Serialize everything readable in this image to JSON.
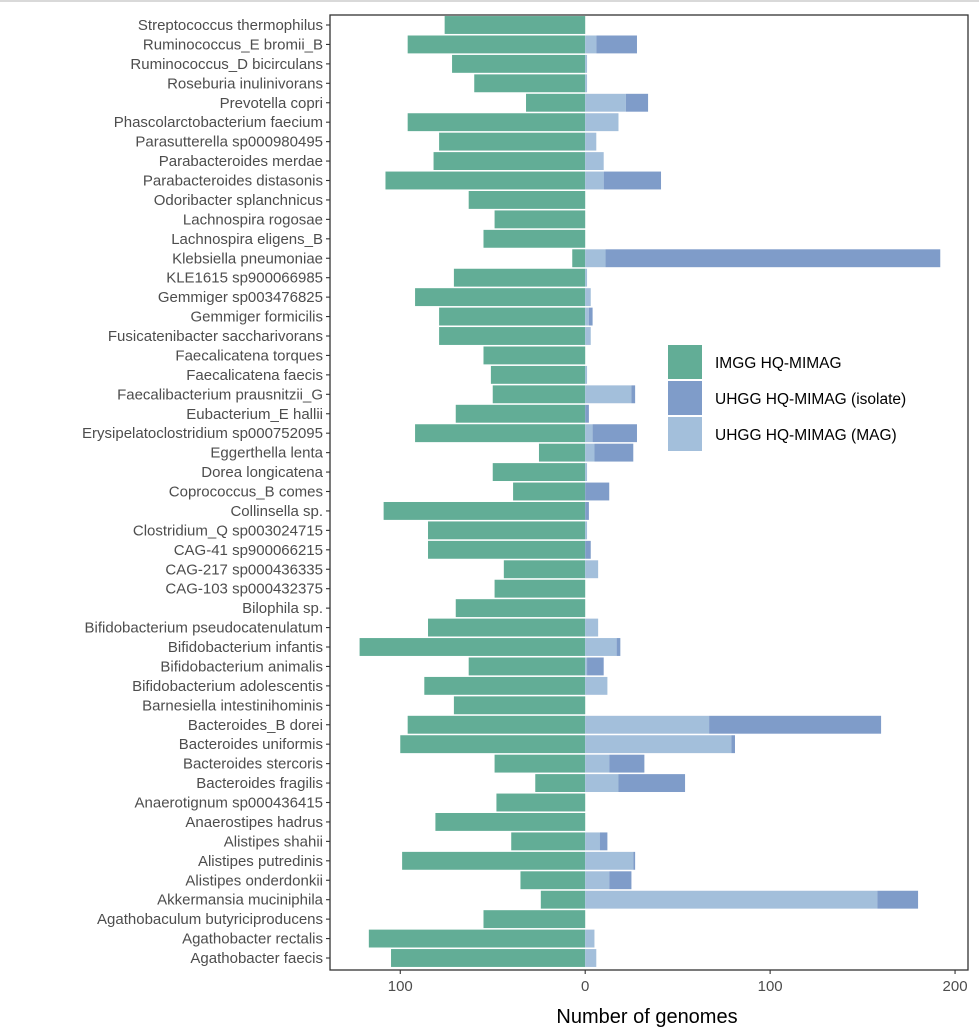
{
  "chart_data": {
    "type": "bar",
    "orientation": "horizontal",
    "stacked": true,
    "title": "",
    "xlabel": "Number of genomes",
    "ylabel": "",
    "xlim": [
      -138,
      207
    ],
    "x_ticks": [
      -100,
      0,
      100,
      200
    ],
    "x_tick_labels": [
      "100",
      "0",
      "100",
      "200"
    ],
    "grid": false,
    "legend_position": "right-center",
    "note": "IMGG counts are drawn to the left of zero; UHGG MAG and isolate counts are stacked to the right",
    "series": [
      {
        "name": "IMGG HQ-MIMAG",
        "color": "#62ad96",
        "direction": "left"
      },
      {
        "name": "UHGG HQ-MIMAG (isolate)",
        "color": "#7f9cc9",
        "direction": "right"
      },
      {
        "name": "UHGG HQ-MIMAG (MAG)",
        "color": "#a3bfdb",
        "direction": "right"
      }
    ],
    "categories": [
      "Streptococcus thermophilus",
      "Ruminococcus_E bromii_B",
      "Ruminococcus_D bicirculans",
      "Roseburia inulinivorans",
      "Prevotella copri",
      "Phascolarctobacterium faecium",
      "Parasutterella sp000980495",
      "Parabacteroides merdae",
      "Parabacteroides distasonis",
      "Odoribacter splanchnicus",
      "Lachnospira rogosae",
      "Lachnospira eligens_B",
      "Klebsiella pneumoniae",
      "KLE1615 sp900066985",
      "Gemmiger sp003476825",
      "Gemmiger formicilis",
      "Fusicatenibacter saccharivorans",
      "Faecalicatena torques",
      "Faecalicatena faecis",
      "Faecalibacterium prausnitzii_G",
      "Eubacterium_E hallii",
      "Erysipelatoclostridium sp000752095",
      "Eggerthella lenta",
      "Dorea longicatena",
      "Coprococcus_B comes",
      "Collinsella sp.",
      "Clostridium_Q sp003024715",
      "CAG-41 sp900066215",
      "CAG-217 sp000436335",
      "CAG-103 sp000432375",
      "Bilophila sp.",
      "Bifidobacterium pseudocatenulatum",
      "Bifidobacterium infantis",
      "Bifidobacterium animalis",
      "Bifidobacterium adolescentis",
      "Barnesiella intestinihominis",
      "Bacteroides_B dorei",
      "Bacteroides uniformis",
      "Bacteroides stercoris",
      "Bacteroides fragilis",
      "Anaerotignum sp000436415",
      "Anaerostipes hadrus",
      "Alistipes shahii",
      "Alistipes putredinis",
      "Alistipes onderdonkii",
      "Akkermansia muciniphila",
      "Agathobaculum butyriciproducens",
      "Agathobacter rectalis",
      "Agathobacter faecis"
    ],
    "imgg": [
      76,
      96,
      72,
      60,
      32,
      96,
      79,
      82,
      108,
      63,
      49,
      55,
      7,
      71,
      92,
      79,
      79,
      55,
      51,
      50,
      70,
      92,
      25,
      50,
      39,
      109,
      85,
      85,
      44,
      49,
      70,
      85,
      122,
      63,
      87,
      71,
      96,
      100,
      49,
      27,
      48,
      81,
      40,
      99,
      35,
      24,
      55,
      117,
      105
    ],
    "uhgg_mag": [
      0,
      6,
      1,
      1,
      22,
      18,
      6,
      10,
      10,
      0,
      0,
      0,
      11,
      1,
      3,
      2,
      3,
      0,
      1,
      25,
      0,
      4,
      5,
      1,
      0,
      0,
      1,
      0,
      7,
      0,
      0,
      7,
      17,
      1,
      12,
      0,
      67,
      79,
      13,
      18,
      0,
      0,
      8,
      26,
      13,
      158,
      0,
      5,
      6
    ],
    "uhgg_isolate": [
      0,
      22,
      0,
      0,
      12,
      0,
      0,
      0,
      31,
      0,
      0,
      0,
      181,
      0,
      0,
      2,
      0,
      0,
      0,
      2,
      2,
      24,
      21,
      0,
      13,
      2,
      0,
      3,
      0,
      0,
      0,
      0,
      2,
      9,
      0,
      0,
      93,
      2,
      19,
      36,
      0,
      0,
      4,
      1,
      12,
      22,
      0,
      0,
      0
    ]
  }
}
